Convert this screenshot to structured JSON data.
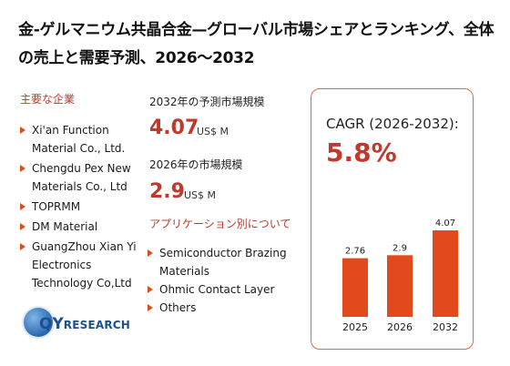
{
  "title": "金-ゲルマニウム共晶合金—グローバル市場シェアとランキング、全体の売上と需要予測、2026～2032",
  "players": {
    "heading": "主要な企業",
    "items": [
      "Xi'an Function Material Co., Ltd.",
      "Chengdu Pex New Materials Co., Ltd",
      "TOPRMM",
      "DM Material",
      "GuangZhou Xian Yi Electronics Technology Co,Ltd"
    ]
  },
  "market": {
    "m2032": {
      "label": "2032年の予測市場規模",
      "value": "4.07",
      "unit": "US$ M"
    },
    "m2026": {
      "label": "2026年の市場規模",
      "value": "2.9",
      "unit": "US$ M"
    }
  },
  "applications": {
    "heading": "アプリケーション別について",
    "items": [
      "Semiconductor Brazing Materials",
      "Ohmic Contact Layer",
      "Others"
    ]
  },
  "cagr": {
    "label": "CAGR (2026-2032):",
    "value": "5.8%"
  },
  "chart_data": {
    "type": "bar",
    "categories": [
      "2025",
      "2026",
      "2032"
    ],
    "values": [
      2.76,
      2.9,
      4.07
    ],
    "data_labels": [
      "2.76",
      "2.9",
      "4.07"
    ],
    "ylim": [
      0,
      4.5
    ],
    "bar_color": "#e04a1c"
  },
  "logo": {
    "qy": "QY",
    "research": "RESEARCH"
  },
  "colors": {
    "accent": "#c0392b",
    "bar": "#e04a1c",
    "box_border": "#e0694a",
    "logo_blue": "#1d4f91"
  }
}
